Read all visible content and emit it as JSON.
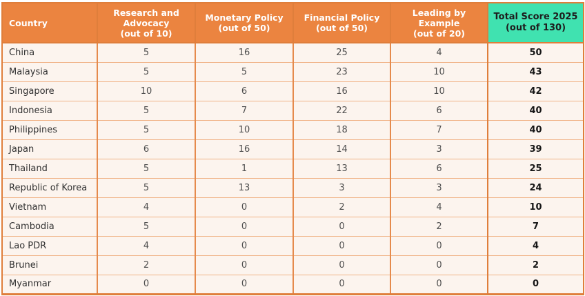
{
  "colors": {
    "header_bg": "#EB8440",
    "header_text": "#FFFFFF",
    "accent_bg": "#40E2B0",
    "accent_text": "#1E1E1E",
    "row_bg": "#FCF4EE",
    "border_strong": "#DF7E3B",
    "border_vert": "#E58A4C",
    "border_light": "#F0B285",
    "body_text": "#4E4E4E",
    "country_text": "#303030",
    "total_text": "#161616"
  },
  "table": {
    "columns": [
      {
        "id": "country",
        "label": "Country",
        "highlight": false
      },
      {
        "id": "research_advocacy",
        "label": "Research and\nAdvocacy\n(out of 10)",
        "highlight": false
      },
      {
        "id": "monetary_policy",
        "label": "Monetary Policy\n(out of 50)",
        "highlight": false
      },
      {
        "id": "financial_policy",
        "label": "Financial Policy\n(out of 50)",
        "highlight": false
      },
      {
        "id": "leading_by_example",
        "label": "Leading by\nExample\n(out of 20)",
        "highlight": false
      },
      {
        "id": "total_score",
        "label": "Total Score 2025\n(out of 130)",
        "highlight": true
      }
    ],
    "rows": [
      {
        "country": "China",
        "research_advocacy": 5,
        "monetary_policy": 16,
        "financial_policy": 25,
        "leading_by_example": 4,
        "total_score": 50
      },
      {
        "country": "Malaysia",
        "research_advocacy": 5,
        "monetary_policy": 5,
        "financial_policy": 23,
        "leading_by_example": 10,
        "total_score": 43
      },
      {
        "country": "Singapore",
        "research_advocacy": 10,
        "monetary_policy": 6,
        "financial_policy": 16,
        "leading_by_example": 10,
        "total_score": 42
      },
      {
        "country": "Indonesia",
        "research_advocacy": 5,
        "monetary_policy": 7,
        "financial_policy": 22,
        "leading_by_example": 6,
        "total_score": 40
      },
      {
        "country": "Philippines",
        "research_advocacy": 5,
        "monetary_policy": 10,
        "financial_policy": 18,
        "leading_by_example": 7,
        "total_score": 40
      },
      {
        "country": "Japan",
        "research_advocacy": 6,
        "monetary_policy": 16,
        "financial_policy": 14,
        "leading_by_example": 3,
        "total_score": 39
      },
      {
        "country": "Thailand",
        "research_advocacy": 5,
        "monetary_policy": 1,
        "financial_policy": 13,
        "leading_by_example": 6,
        "total_score": 25
      },
      {
        "country": "Republic of Korea",
        "research_advocacy": 5,
        "monetary_policy": 13,
        "financial_policy": 3,
        "leading_by_example": 3,
        "total_score": 24
      },
      {
        "country": "Vietnam",
        "research_advocacy": 4,
        "monetary_policy": 0,
        "financial_policy": 2,
        "leading_by_example": 4,
        "total_score": 10
      },
      {
        "country": "Cambodia",
        "research_advocacy": 5,
        "monetary_policy": 0,
        "financial_policy": 0,
        "leading_by_example": 2,
        "total_score": 7
      },
      {
        "country": "Lao PDR",
        "research_advocacy": 4,
        "monetary_policy": 0,
        "financial_policy": 0,
        "leading_by_example": 0,
        "total_score": 4
      },
      {
        "country": "Brunei",
        "research_advocacy": 2,
        "monetary_policy": 0,
        "financial_policy": 0,
        "leading_by_example": 0,
        "total_score": 2
      },
      {
        "country": "Myanmar",
        "research_advocacy": 0,
        "monetary_policy": 0,
        "financial_policy": 0,
        "leading_by_example": 0,
        "total_score": 0
      }
    ]
  }
}
